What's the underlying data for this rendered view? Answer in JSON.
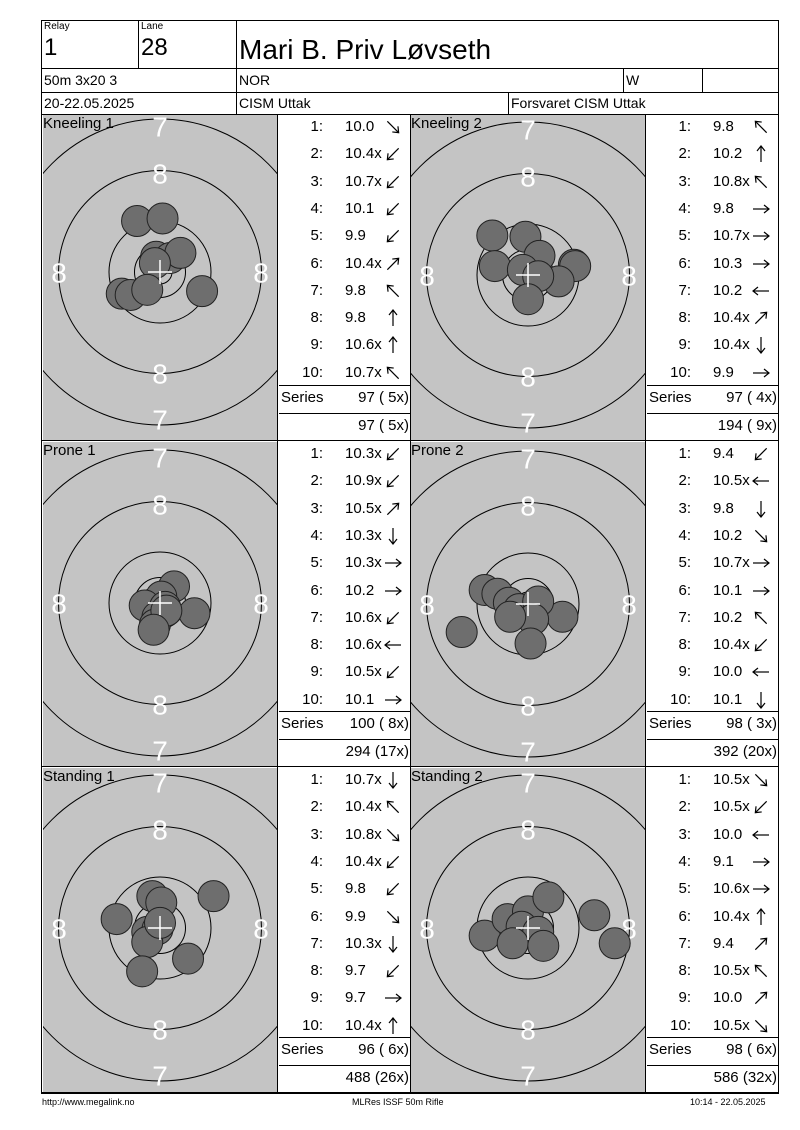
{
  "header": {
    "relay_label": "Relay",
    "relay": "1",
    "lane_label": "Lane",
    "lane": "28",
    "name": "Mari B. Priv Løvseth",
    "event": "50m 3x20 3",
    "nation": "NOR",
    "gender": "W",
    "date": "20-22.05.2025",
    "competition": "CISM Uttak",
    "club": "Forsvaret CISM Uttak"
  },
  "panels": [
    {
      "label": "Kneeling 1",
      "shots": [
        {
          "n": "1:",
          "v": "10.0",
          "dir": "se"
        },
        {
          "n": "2:",
          "v": "10.4x",
          "dir": "sw"
        },
        {
          "n": "3:",
          "v": "10.7x",
          "dir": "sw"
        },
        {
          "n": "4:",
          "v": "10.1",
          "dir": "sw"
        },
        {
          "n": "5:",
          "v": "9.9",
          "dir": "sw"
        },
        {
          "n": "6:",
          "v": "10.4x",
          "dir": "ne"
        },
        {
          "n": "7:",
          "v": "9.8",
          "dir": "nw"
        },
        {
          "n": "8:",
          "v": "9.8",
          "dir": "n"
        },
        {
          "n": "9:",
          "v": "10.6x",
          "dir": "n"
        },
        {
          "n": "10:",
          "v": "10.7x",
          "dir": "nw"
        }
      ],
      "series_label": "Series",
      "series": "97 ( 5x)",
      "total": "97 ( 5x)"
    },
    {
      "label": "Kneeling 2",
      "shots": [
        {
          "n": "1:",
          "v": "9.8",
          "dir": "nw"
        },
        {
          "n": "2:",
          "v": "10.2",
          "dir": "n"
        },
        {
          "n": "3:",
          "v": "10.8x",
          "dir": "nw"
        },
        {
          "n": "4:",
          "v": "9.8",
          "dir": "e"
        },
        {
          "n": "5:",
          "v": "10.7x",
          "dir": "e"
        },
        {
          "n": "6:",
          "v": "10.3",
          "dir": "e"
        },
        {
          "n": "7:",
          "v": "10.2",
          "dir": "w"
        },
        {
          "n": "8:",
          "v": "10.4x",
          "dir": "ne"
        },
        {
          "n": "9:",
          "v": "10.4x",
          "dir": "s"
        },
        {
          "n": "10:",
          "v": "9.9",
          "dir": "e"
        }
      ],
      "series_label": "Series",
      "series": "97 ( 4x)",
      "total": "194 ( 9x)"
    },
    {
      "label": "Prone 1",
      "shots": [
        {
          "n": "1:",
          "v": "10.3x",
          "dir": "sw"
        },
        {
          "n": "2:",
          "v": "10.9x",
          "dir": "sw"
        },
        {
          "n": "3:",
          "v": "10.5x",
          "dir": "ne"
        },
        {
          "n": "4:",
          "v": "10.3x",
          "dir": "s"
        },
        {
          "n": "5:",
          "v": "10.3x",
          "dir": "e"
        },
        {
          "n": "6:",
          "v": "10.2",
          "dir": "e"
        },
        {
          "n": "7:",
          "v": "10.6x",
          "dir": "sw"
        },
        {
          "n": "8:",
          "v": "10.6x",
          "dir": "w"
        },
        {
          "n": "9:",
          "v": "10.5x",
          "dir": "sw"
        },
        {
          "n": "10:",
          "v": "10.1",
          "dir": "e"
        }
      ],
      "series_label": "Series",
      "series": "100 ( 8x)",
      "total": "294 (17x)"
    },
    {
      "label": "Prone 2",
      "shots": [
        {
          "n": "1:",
          "v": "9.4",
          "dir": "sw"
        },
        {
          "n": "2:",
          "v": "10.5x",
          "dir": "w"
        },
        {
          "n": "3:",
          "v": "9.8",
          "dir": "s"
        },
        {
          "n": "4:",
          "v": "10.2",
          "dir": "se"
        },
        {
          "n": "5:",
          "v": "10.7x",
          "dir": "e"
        },
        {
          "n": "6:",
          "v": "10.1",
          "dir": "e"
        },
        {
          "n": "7:",
          "v": "10.2",
          "dir": "nw"
        },
        {
          "n": "8:",
          "v": "10.4x",
          "dir": "sw"
        },
        {
          "n": "9:",
          "v": "10.0",
          "dir": "w"
        },
        {
          "n": "10:",
          "v": "10.1",
          "dir": "s"
        }
      ],
      "series_label": "Series",
      "series": "98 ( 3x)",
      "total": "392 (20x)"
    },
    {
      "label": "Standing 1",
      "shots": [
        {
          "n": "1:",
          "v": "10.7x",
          "dir": "s"
        },
        {
          "n": "2:",
          "v": "10.4x",
          "dir": "nw"
        },
        {
          "n": "3:",
          "v": "10.8x",
          "dir": "se"
        },
        {
          "n": "4:",
          "v": "10.4x",
          "dir": "sw"
        },
        {
          "n": "5:",
          "v": "9.8",
          "dir": "sw"
        },
        {
          "n": "6:",
          "v": "9.9",
          "dir": "se"
        },
        {
          "n": "7:",
          "v": "10.3x",
          "dir": "s"
        },
        {
          "n": "8:",
          "v": "9.7",
          "dir": "sw"
        },
        {
          "n": "9:",
          "v": "9.7",
          "dir": "e"
        },
        {
          "n": "10:",
          "v": "10.4x",
          "dir": "n"
        }
      ],
      "series_label": "Series",
      "series": "96 ( 6x)",
      "total": "488 (26x)"
    },
    {
      "label": "Standing 2",
      "shots": [
        {
          "n": "1:",
          "v": "10.5x",
          "dir": "se"
        },
        {
          "n": "2:",
          "v": "10.5x",
          "dir": "sw"
        },
        {
          "n": "3:",
          "v": "10.0",
          "dir": "w"
        },
        {
          "n": "4:",
          "v": "9.1",
          "dir": "e"
        },
        {
          "n": "5:",
          "v": "10.6x",
          "dir": "e"
        },
        {
          "n": "6:",
          "v": "10.4x",
          "dir": "n"
        },
        {
          "n": "7:",
          "v": "9.4",
          "dir": "ne"
        },
        {
          "n": "8:",
          "v": "10.5x",
          "dir": "nw"
        },
        {
          "n": "9:",
          "v": "10.0",
          "dir": "ne"
        },
        {
          "n": "10:",
          "v": "10.5x",
          "dir": "se"
        }
      ],
      "series_label": "Series",
      "series": "98 ( 6x)",
      "total": "586 (32x)"
    }
  ],
  "ring_numbers": {
    "outer": "7",
    "inner": "8"
  },
  "footer": {
    "url": "http://www.megalink.no",
    "software": "MLRes ISSF 50m Rifle",
    "timestamp": "10:14 - 22.05.2025"
  },
  "colors": {
    "target_bg": "#c4c4c4",
    "hole": "#6e6e6e",
    "ring_line": "#000000",
    "center_cross": "#ffffff"
  }
}
